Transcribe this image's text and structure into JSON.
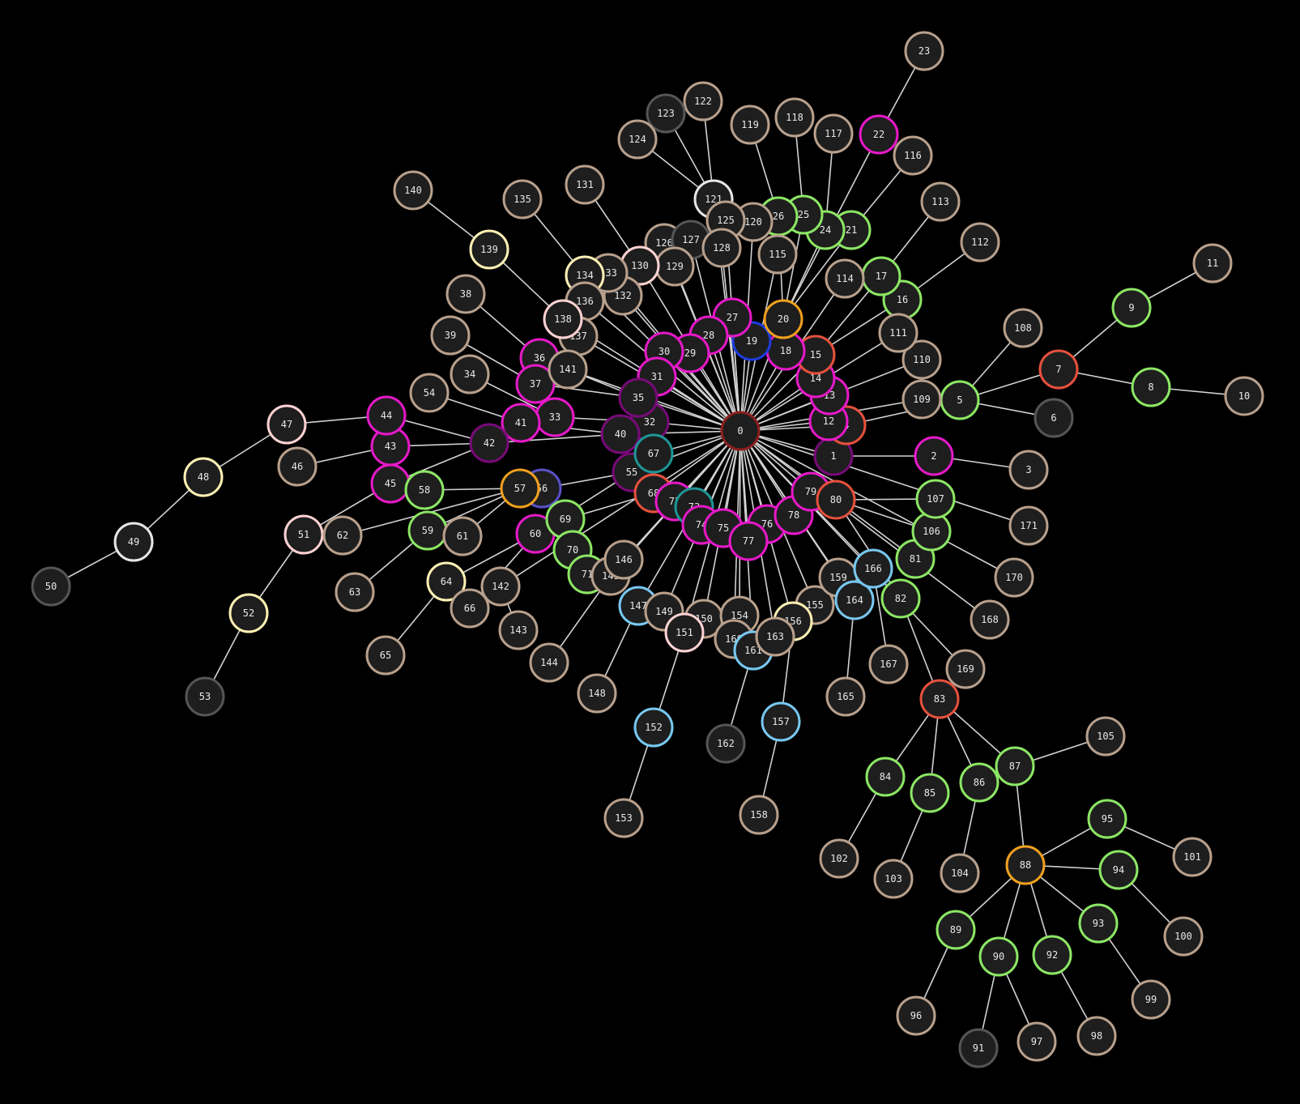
{
  "colors": {
    "background": "#000000",
    "node_fill": "#1e1e1e",
    "edge": "#d2d2d2",
    "label": "#e8e8e8",
    "tan": "#b8a08c",
    "magenta": "#e619c8",
    "green": "#8ce664",
    "red": "#e6503c",
    "orange": "#f0a01e",
    "darkred": "#8c1e1e",
    "purple": "#780a78",
    "teal": "#1e9696",
    "blue": "#1e3cdc",
    "lightblue": "#78c8f0",
    "cream": "#fff0b4",
    "pink": "#ffd2d2",
    "white": "#e6e6e6",
    "gray": "#555555",
    "indigo": "#5a50c8"
  },
  "nodes": [
    {
      "id": "0",
      "color": "darkred"
    },
    {
      "id": "1",
      "color": "purple"
    },
    {
      "id": "2",
      "color": "magenta"
    },
    {
      "id": "3",
      "color": "tan"
    },
    {
      "id": "4",
      "color": "red"
    },
    {
      "id": "5",
      "color": "green"
    },
    {
      "id": "6",
      "color": "gray"
    },
    {
      "id": "7",
      "color": "red"
    },
    {
      "id": "8",
      "color": "green"
    },
    {
      "id": "9",
      "color": "green"
    },
    {
      "id": "10",
      "color": "tan"
    },
    {
      "id": "11",
      "color": "tan"
    },
    {
      "id": "12",
      "color": "magenta"
    },
    {
      "id": "13",
      "color": "magenta"
    },
    {
      "id": "14",
      "color": "magenta"
    },
    {
      "id": "15",
      "color": "red"
    },
    {
      "id": "16",
      "color": "green"
    },
    {
      "id": "17",
      "color": "green"
    },
    {
      "id": "18",
      "color": "magenta"
    },
    {
      "id": "19",
      "color": "blue"
    },
    {
      "id": "20",
      "color": "orange"
    },
    {
      "id": "21",
      "color": "green"
    },
    {
      "id": "22",
      "color": "magenta"
    },
    {
      "id": "23",
      "color": "tan"
    },
    {
      "id": "24",
      "color": "green"
    },
    {
      "id": "25",
      "color": "green"
    },
    {
      "id": "26",
      "color": "green"
    },
    {
      "id": "27",
      "color": "magenta"
    },
    {
      "id": "28",
      "color": "magenta"
    },
    {
      "id": "29",
      "color": "magenta"
    },
    {
      "id": "30",
      "color": "magenta"
    },
    {
      "id": "31",
      "color": "magenta"
    },
    {
      "id": "32",
      "color": "purple"
    },
    {
      "id": "33",
      "color": "magenta"
    },
    {
      "id": "34",
      "color": "tan"
    },
    {
      "id": "35",
      "color": "purple"
    },
    {
      "id": "36",
      "color": "magenta"
    },
    {
      "id": "37",
      "color": "magenta"
    },
    {
      "id": "38",
      "color": "tan"
    },
    {
      "id": "39",
      "color": "tan"
    },
    {
      "id": "40",
      "color": "purple"
    },
    {
      "id": "41",
      "color": "magenta"
    },
    {
      "id": "42",
      "color": "purple"
    },
    {
      "id": "43",
      "color": "magenta"
    },
    {
      "id": "44",
      "color": "magenta"
    },
    {
      "id": "45",
      "color": "magenta"
    },
    {
      "id": "46",
      "color": "tan"
    },
    {
      "id": "47",
      "color": "pink"
    },
    {
      "id": "48",
      "color": "cream"
    },
    {
      "id": "49",
      "color": "white"
    },
    {
      "id": "50",
      "color": "gray"
    },
    {
      "id": "51",
      "color": "pink"
    },
    {
      "id": "52",
      "color": "cream"
    },
    {
      "id": "53",
      "color": "gray"
    },
    {
      "id": "54",
      "color": "tan"
    },
    {
      "id": "55",
      "color": "purple"
    },
    {
      "id": "56",
      "color": "indigo"
    },
    {
      "id": "57",
      "color": "orange"
    },
    {
      "id": "58",
      "color": "green"
    },
    {
      "id": "59",
      "color": "green"
    },
    {
      "id": "60",
      "color": "magenta"
    },
    {
      "id": "61",
      "color": "tan"
    },
    {
      "id": "62",
      "color": "tan"
    },
    {
      "id": "63",
      "color": "tan"
    },
    {
      "id": "64",
      "color": "cream"
    },
    {
      "id": "65",
      "color": "tan"
    },
    {
      "id": "66",
      "color": "tan"
    },
    {
      "id": "67",
      "color": "teal"
    },
    {
      "id": "68",
      "color": "red"
    },
    {
      "id": "69",
      "color": "green"
    },
    {
      "id": "70",
      "color": "green"
    },
    {
      "id": "71",
      "color": "green"
    },
    {
      "id": "72",
      "color": "magenta"
    },
    {
      "id": "73",
      "color": "teal"
    },
    {
      "id": "74",
      "color": "magenta"
    },
    {
      "id": "75",
      "color": "magenta"
    },
    {
      "id": "76",
      "color": "magenta"
    },
    {
      "id": "77",
      "color": "magenta"
    },
    {
      "id": "78",
      "color": "magenta"
    },
    {
      "id": "79",
      "color": "magenta"
    },
    {
      "id": "80",
      "color": "red"
    },
    {
      "id": "81",
      "color": "green"
    },
    {
      "id": "82",
      "color": "green"
    },
    {
      "id": "83",
      "color": "red"
    },
    {
      "id": "84",
      "color": "green"
    },
    {
      "id": "85",
      "color": "green"
    },
    {
      "id": "86",
      "color": "green"
    },
    {
      "id": "87",
      "color": "green"
    },
    {
      "id": "88",
      "color": "orange"
    },
    {
      "id": "89",
      "color": "green"
    },
    {
      "id": "90",
      "color": "green"
    },
    {
      "id": "91",
      "color": "gray"
    },
    {
      "id": "92",
      "color": "green"
    },
    {
      "id": "93",
      "color": "green"
    },
    {
      "id": "94",
      "color": "green"
    },
    {
      "id": "95",
      "color": "green"
    },
    {
      "id": "96",
      "color": "tan"
    },
    {
      "id": "97",
      "color": "tan"
    },
    {
      "id": "98",
      "color": "tan"
    },
    {
      "id": "99",
      "color": "tan"
    },
    {
      "id": "100",
      "color": "tan"
    },
    {
      "id": "101",
      "color": "tan"
    },
    {
      "id": "102",
      "color": "tan"
    },
    {
      "id": "103",
      "color": "tan"
    },
    {
      "id": "104",
      "color": "tan"
    },
    {
      "id": "105",
      "color": "tan"
    },
    {
      "id": "106",
      "color": "green"
    },
    {
      "id": "107",
      "color": "green"
    },
    {
      "id": "108",
      "color": "tan"
    },
    {
      "id": "109",
      "color": "tan"
    },
    {
      "id": "110",
      "color": "tan"
    },
    {
      "id": "111",
      "color": "tan"
    },
    {
      "id": "112",
      "color": "tan"
    },
    {
      "id": "113",
      "color": "tan"
    },
    {
      "id": "114",
      "color": "tan"
    },
    {
      "id": "115",
      "color": "tan"
    },
    {
      "id": "116",
      "color": "tan"
    },
    {
      "id": "117",
      "color": "tan"
    },
    {
      "id": "118",
      "color": "tan"
    },
    {
      "id": "119",
      "color": "tan"
    },
    {
      "id": "120",
      "color": "tan"
    },
    {
      "id": "121",
      "color": "white"
    },
    {
      "id": "122",
      "color": "tan"
    },
    {
      "id": "123",
      "color": "gray"
    },
    {
      "id": "124",
      "color": "tan"
    },
    {
      "id": "125",
      "color": "tan"
    },
    {
      "id": "126",
      "color": "tan"
    },
    {
      "id": "127",
      "color": "gray"
    },
    {
      "id": "128",
      "color": "tan"
    },
    {
      "id": "129",
      "color": "tan"
    },
    {
      "id": "130",
      "color": "pink"
    },
    {
      "id": "131",
      "color": "tan"
    },
    {
      "id": "132",
      "color": "tan"
    },
    {
      "id": "133",
      "color": "tan"
    },
    {
      "id": "134",
      "color": "cream"
    },
    {
      "id": "135",
      "color": "tan"
    },
    {
      "id": "136",
      "color": "tan"
    },
    {
      "id": "137",
      "color": "tan"
    },
    {
      "id": "138",
      "color": "pink"
    },
    {
      "id": "139",
      "color": "cream"
    },
    {
      "id": "140",
      "color": "tan"
    },
    {
      "id": "141",
      "color": "tan"
    },
    {
      "id": "142",
      "color": "tan"
    },
    {
      "id": "143",
      "color": "tan"
    },
    {
      "id": "144",
      "color": "tan"
    },
    {
      "id": "145",
      "color": "tan"
    },
    {
      "id": "146",
      "color": "tan"
    },
    {
      "id": "147",
      "color": "lightblue"
    },
    {
      "id": "148",
      "color": "tan"
    },
    {
      "id": "149",
      "color": "tan"
    },
    {
      "id": "150",
      "color": "tan"
    },
    {
      "id": "151",
      "color": "pink"
    },
    {
      "id": "152",
      "color": "lightblue"
    },
    {
      "id": "153",
      "color": "tan"
    },
    {
      "id": "154",
      "color": "tan"
    },
    {
      "id": "155",
      "color": "tan"
    },
    {
      "id": "156",
      "color": "cream"
    },
    {
      "id": "157",
      "color": "lightblue"
    },
    {
      "id": "158",
      "color": "tan"
    },
    {
      "id": "159",
      "color": "tan"
    },
    {
      "id": "160",
      "color": "tan"
    },
    {
      "id": "161",
      "color": "lightblue"
    },
    {
      "id": "162",
      "color": "gray"
    },
    {
      "id": "163",
      "color": "tan"
    },
    {
      "id": "164",
      "color": "lightblue"
    },
    {
      "id": "165",
      "color": "tan"
    },
    {
      "id": "166",
      "color": "lightblue"
    },
    {
      "id": "167",
      "color": "tan"
    },
    {
      "id": "168",
      "color": "tan"
    },
    {
      "id": "169",
      "color": "tan"
    },
    {
      "id": "170",
      "color": "tan"
    },
    {
      "id": "171",
      "color": "tan"
    }
  ],
  "edges": [
    [
      "0",
      "1"
    ],
    [
      "1",
      "2"
    ],
    [
      "2",
      "3"
    ],
    [
      "0",
      "4"
    ],
    [
      "4",
      "5"
    ],
    [
      "5",
      "6"
    ],
    [
      "5",
      "7"
    ],
    [
      "7",
      "8"
    ],
    [
      "7",
      "9"
    ],
    [
      "8",
      "10"
    ],
    [
      "9",
      "11"
    ],
    [
      "0",
      "12"
    ],
    [
      "0",
      "13"
    ],
    [
      "0",
      "14"
    ],
    [
      "0",
      "15"
    ],
    [
      "15",
      "16"
    ],
    [
      "15",
      "17"
    ],
    [
      "0",
      "18"
    ],
    [
      "0",
      "19"
    ],
    [
      "0",
      "20"
    ],
    [
      "20",
      "21"
    ],
    [
      "20",
      "22"
    ],
    [
      "22",
      "23"
    ],
    [
      "20",
      "24"
    ],
    [
      "20",
      "25"
    ],
    [
      "20",
      "26"
    ],
    [
      "0",
      "27"
    ],
    [
      "0",
      "28"
    ],
    [
      "0",
      "29"
    ],
    [
      "0",
      "30"
    ],
    [
      "0",
      "31"
    ],
    [
      "0",
      "32"
    ],
    [
      "32",
      "33"
    ],
    [
      "33",
      "34"
    ],
    [
      "0",
      "35"
    ],
    [
      "35",
      "36"
    ],
    [
      "36",
      "38"
    ],
    [
      "35",
      "37"
    ],
    [
      "37",
      "39"
    ],
    [
      "0",
      "40"
    ],
    [
      "40",
      "41"
    ],
    [
      "41",
      "54"
    ],
    [
      "40",
      "42"
    ],
    [
      "42",
      "43"
    ],
    [
      "42",
      "44"
    ],
    [
      "42",
      "45"
    ],
    [
      "43",
      "46"
    ],
    [
      "44",
      "47"
    ],
    [
      "47",
      "48"
    ],
    [
      "48",
      "49"
    ],
    [
      "49",
      "50"
    ],
    [
      "45",
      "51"
    ],
    [
      "51",
      "52"
    ],
    [
      "52",
      "53"
    ],
    [
      "0",
      "55"
    ],
    [
      "55",
      "56"
    ],
    [
      "56",
      "57"
    ],
    [
      "57",
      "58"
    ],
    [
      "57",
      "59"
    ],
    [
      "57",
      "61"
    ],
    [
      "57",
      "62"
    ],
    [
      "59",
      "63"
    ],
    [
      "55",
      "60"
    ],
    [
      "60",
      "64"
    ],
    [
      "64",
      "65"
    ],
    [
      "60",
      "66"
    ],
    [
      "0",
      "67"
    ],
    [
      "0",
      "68"
    ],
    [
      "68",
      "69"
    ],
    [
      "69",
      "70"
    ],
    [
      "69",
      "71"
    ],
    [
      "0",
      "72"
    ],
    [
      "0",
      "73"
    ],
    [
      "0",
      "74"
    ],
    [
      "0",
      "75"
    ],
    [
      "0",
      "76"
    ],
    [
      "0",
      "77"
    ],
    [
      "0",
      "78"
    ],
    [
      "0",
      "79"
    ],
    [
      "0",
      "80"
    ],
    [
      "80",
      "81"
    ],
    [
      "80",
      "82"
    ],
    [
      "82",
      "83"
    ],
    [
      "83",
      "84"
    ],
    [
      "83",
      "85"
    ],
    [
      "83",
      "86"
    ],
    [
      "83",
      "87"
    ],
    [
      "87",
      "88"
    ],
    [
      "88",
      "89"
    ],
    [
      "88",
      "90"
    ],
    [
      "90",
      "91"
    ],
    [
      "88",
      "92"
    ],
    [
      "88",
      "93"
    ],
    [
      "88",
      "94"
    ],
    [
      "88",
      "95"
    ],
    [
      "89",
      "96"
    ],
    [
      "90",
      "97"
    ],
    [
      "92",
      "98"
    ],
    [
      "93",
      "99"
    ],
    [
      "94",
      "100"
    ],
    [
      "95",
      "101"
    ],
    [
      "84",
      "102"
    ],
    [
      "85",
      "103"
    ],
    [
      "86",
      "104"
    ],
    [
      "87",
      "105"
    ],
    [
      "80",
      "106"
    ],
    [
      "80",
      "107"
    ],
    [
      "5",
      "108"
    ],
    [
      "0",
      "109"
    ],
    [
      "0",
      "110"
    ],
    [
      "0",
      "111"
    ],
    [
      "16",
      "112"
    ],
    [
      "17",
      "113"
    ],
    [
      "0",
      "114"
    ],
    [
      "0",
      "115"
    ],
    [
      "21",
      "116"
    ],
    [
      "24",
      "117"
    ],
    [
      "25",
      "118"
    ],
    [
      "26",
      "119"
    ],
    [
      "0",
      "120"
    ],
    [
      "0",
      "121"
    ],
    [
      "121",
      "122"
    ],
    [
      "121",
      "123"
    ],
    [
      "121",
      "124"
    ],
    [
      "0",
      "125"
    ],
    [
      "0",
      "126"
    ],
    [
      "0",
      "127"
    ],
    [
      "0",
      "128"
    ],
    [
      "0",
      "129"
    ],
    [
      "0",
      "130"
    ],
    [
      "130",
      "131"
    ],
    [
      "0",
      "132"
    ],
    [
      "0",
      "133"
    ],
    [
      "0",
      "134"
    ],
    [
      "134",
      "135"
    ],
    [
      "0",
      "136"
    ],
    [
      "0",
      "137"
    ],
    [
      "0",
      "138"
    ],
    [
      "138",
      "139"
    ],
    [
      "139",
      "140"
    ],
    [
      "0",
      "141"
    ],
    [
      "0",
      "142"
    ],
    [
      "142",
      "143"
    ],
    [
      "0",
      "145"
    ],
    [
      "145",
      "144"
    ],
    [
      "0",
      "146"
    ],
    [
      "0",
      "147"
    ],
    [
      "147",
      "148"
    ],
    [
      "0",
      "149"
    ],
    [
      "0",
      "150"
    ],
    [
      "0",
      "151"
    ],
    [
      "151",
      "152"
    ],
    [
      "152",
      "153"
    ],
    [
      "0",
      "154"
    ],
    [
      "0",
      "155"
    ],
    [
      "0",
      "156"
    ],
    [
      "156",
      "157"
    ],
    [
      "157",
      "158"
    ],
    [
      "0",
      "159"
    ],
    [
      "0",
      "160"
    ],
    [
      "0",
      "161"
    ],
    [
      "161",
      "162"
    ],
    [
      "0",
      "163"
    ],
    [
      "0",
      "164"
    ],
    [
      "164",
      "165"
    ],
    [
      "0",
      "166"
    ],
    [
      "166",
      "167"
    ],
    [
      "0",
      "168"
    ],
    [
      "0",
      "169"
    ],
    [
      "0",
      "170"
    ],
    [
      "0",
      "171"
    ]
  ]
}
